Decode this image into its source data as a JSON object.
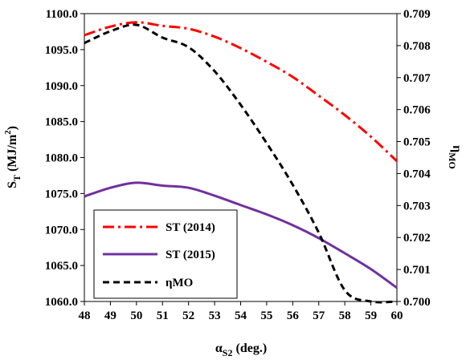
{
  "chart_data": {
    "type": "line",
    "xlabel": {
      "main": "α",
      "sub": "S2",
      "suffix": " (deg.)"
    },
    "ylabel_left": {
      "main": "S",
      "sub": "T",
      "suffix": " (MJ/m",
      "sup": "2",
      "close": ")"
    },
    "ylabel_right": {
      "main": "η",
      "sub": "MO"
    },
    "xlim": [
      48,
      60
    ],
    "ylim_left": [
      1060,
      1100
    ],
    "ylim_right": [
      0.7,
      0.709
    ],
    "x_ticks": [
      "48",
      "49",
      "50",
      "51",
      "52",
      "53",
      "54",
      "55",
      "56",
      "57",
      "58",
      "59",
      "60"
    ],
    "y_left_ticks": [
      "1060.0",
      "1065.0",
      "1070.0",
      "1075.0",
      "1080.0",
      "1085.0",
      "1090.0",
      "1095.0",
      "1100.0"
    ],
    "y_right_ticks": [
      "0.700",
      "0.701",
      "0.702",
      "0.703",
      "0.704",
      "0.705",
      "0.706",
      "0.707",
      "0.708",
      "0.709"
    ],
    "grid": false,
    "legend_position": "bottom-left",
    "x": [
      48,
      49,
      50,
      51,
      52,
      53,
      54,
      55,
      56,
      57,
      58,
      59,
      60
    ],
    "series": [
      {
        "name": "ST (2014)",
        "axis": "left",
        "color": "#ff0000",
        "dash": "dashdot",
        "values": [
          1097.0,
          1098.2,
          1098.8,
          1098.3,
          1097.9,
          1096.8,
          1095.2,
          1093.3,
          1091.2,
          1088.6,
          1085.9,
          1082.9,
          1079.5
        ]
      },
      {
        "name": "ST (2015)",
        "axis": "left",
        "color": "#7030a0",
        "dash": "solid",
        "values": [
          1074.6,
          1075.8,
          1076.5,
          1076.1,
          1075.8,
          1074.7,
          1073.4,
          1072.1,
          1070.6,
          1068.8,
          1066.7,
          1064.5,
          1061.9
        ]
      },
      {
        "name": "ηMO",
        "axis": "right",
        "color": "#000000",
        "dash": "dashed",
        "values": [
          0.70808,
          0.70845,
          0.70865,
          0.70825,
          0.70795,
          0.7072,
          0.70615,
          0.70495,
          0.70365,
          0.70215,
          0.70035,
          0.7,
          0.7
        ]
      }
    ]
  }
}
